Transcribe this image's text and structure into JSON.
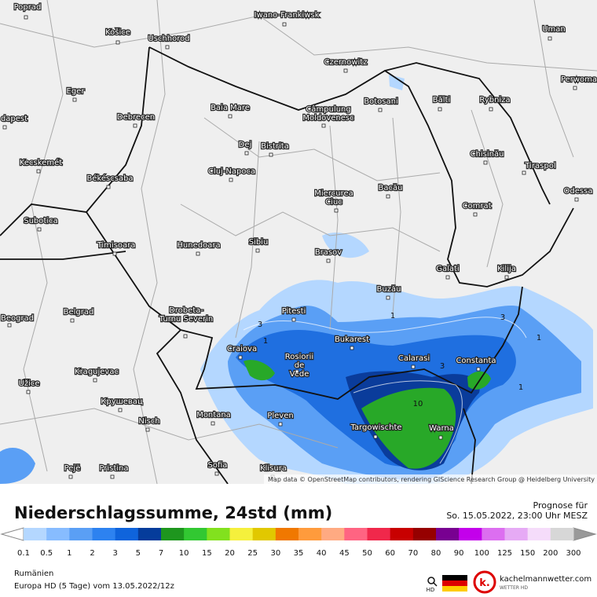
{
  "map": {
    "cities": [
      "Poprad",
      "Košice",
      "Uschhorod",
      "Iwano-Frankiwsk",
      "Uman",
      "Czernowitz",
      "Perwoma",
      "Eger",
      "Baia Mare",
      "Câmpulung Moldovenesc",
      "Botosani",
      "Bălti",
      "Rybniza",
      "dapest",
      "Debrecen",
      "Dej",
      "Bistrita",
      "Chisinău",
      "Tiraspol",
      "Kecskemét",
      "Cluj-Napoca",
      "Békéscsaba",
      "Miercurea Ciuc",
      "Bacău",
      "Odessa",
      "Subotica",
      "Comrat",
      "Timisoara",
      "Hunedoara",
      "Sibiu",
      "Brasov",
      "Galati",
      "Kilija",
      "Buzău",
      "Drobeta-Turnu Severin",
      "Pitesti",
      "Belgrad",
      "Beograd",
      "Craiova",
      "Bukarest",
      "Rosiorii de Vede",
      "Calarasi",
      "Constanta",
      "Kragujevac",
      "Užice",
      "Крушевац",
      "Montana",
      "Pleven",
      "Nisch",
      "Targowischte",
      "Warna",
      "Pejë",
      "Pristina",
      "Sofia",
      "Klisura"
    ],
    "contour_labels": [
      "3",
      "1",
      "3",
      "1",
      "3",
      "1",
      "1",
      "10"
    ],
    "attribution": "Map data © OpenStreetMap contributors, rendering GIScience Research Group @ Heidelberg University"
  },
  "legend": {
    "title": "Niederschlagssumme, 24std (mm)",
    "forecast_label": "Prognose für",
    "forecast_time": "So. 15.05.2022, 23:00 Uhr MESZ",
    "levels": [
      0.1,
      0.5,
      1,
      2,
      3,
      5,
      7,
      10,
      15,
      20,
      25,
      30,
      35,
      40,
      45,
      50,
      60,
      70,
      80,
      90,
      100,
      125,
      150,
      200,
      300
    ],
    "colors": [
      "#b4d7ff",
      "#87bcff",
      "#5a9ff5",
      "#2d82f0",
      "#0f64dc",
      "#053c9b",
      "#1e961e",
      "#32c832",
      "#82e11e",
      "#f5f03c",
      "#e1c800",
      "#f07800",
      "#ff9b3c",
      "#ffaa82",
      "#ff6482",
      "#f0284b",
      "#c80000",
      "#960000",
      "#780091",
      "#c300eb",
      "#dc6ef0",
      "#e6aaf5",
      "#f5dcfa",
      "#d7d7d7"
    ]
  },
  "footer": {
    "region": "Rumänien",
    "model": "Europa HD (5 Tage) vom 13.05.2022/12z",
    "zoom_label": "HD",
    "brand": "kachelmannwetter.com",
    "brand_sub": "WETTER HD"
  }
}
